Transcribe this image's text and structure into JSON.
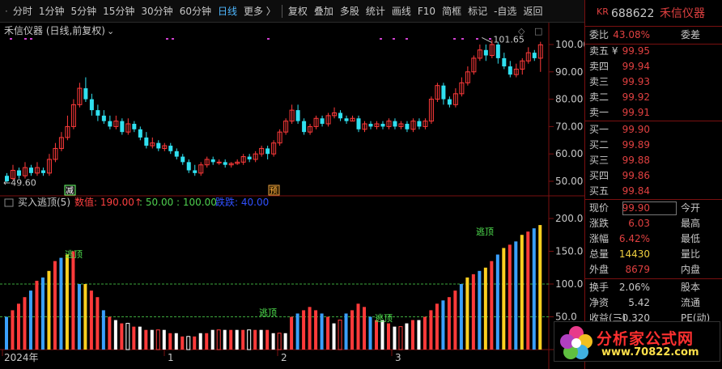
{
  "toolbar": {
    "items": [
      {
        "label": "分时",
        "active": false
      },
      {
        "label": "1分钟",
        "active": false
      },
      {
        "label": "5分钟",
        "active": false
      },
      {
        "label": "15分钟",
        "active": false
      },
      {
        "label": "30分钟",
        "active": false
      },
      {
        "label": "60分钟",
        "active": false
      },
      {
        "label": "日线",
        "active": true
      },
      {
        "label": "更多 〉",
        "active": false
      }
    ],
    "right_items": [
      "复权",
      "叠加",
      "多股",
      "统计",
      "画线",
      "F10",
      "简框",
      "标记",
      "-自选",
      "返回"
    ]
  },
  "chart": {
    "title": "禾信仪器 (日线,前复权)",
    "high_marker": "101.65",
    "low_marker": "49.60",
    "price_ticks": [
      "100.00",
      "90.00",
      "80.00",
      "70.00",
      "60.00",
      "50.00"
    ],
    "markers": [
      "减",
      "预"
    ],
    "colors": {
      "up": "#ff3a3a",
      "down": "#30e0f0",
      "grid": "#7a1010",
      "dotted": "#3da83d",
      "purple": "#d040d0"
    }
  },
  "indicator": {
    "title": "买入逃顶(5)",
    "value_label": "数值: 190.00↑",
    "params": ": 50.00 : 100.00",
    "diezhi_label": "跌跌: 40.00",
    "ticks": [
      "200.0",
      "150.0",
      "100.0",
      "50.0"
    ],
    "escape_label": "逃顶",
    "levels": [
      50,
      100
    ]
  },
  "xaxis": {
    "labels": [
      "2024年",
      "1",
      "2",
      "3"
    ]
  },
  "quote": {
    "market": "KR",
    "code": "688622",
    "name": "禾信仪器",
    "weibi_label": "委比",
    "weibi_value": "43.08%",
    "weicha_label": "委差",
    "sell": [
      {
        "label": "卖五",
        "price": "99.95",
        "extra": "¥"
      },
      {
        "label": "卖四",
        "price": "99.94",
        "extra": ""
      },
      {
        "label": "卖三",
        "price": "99.93",
        "extra": ""
      },
      {
        "label": "卖二",
        "price": "99.92",
        "extra": ""
      },
      {
        "label": "卖一",
        "price": "99.91",
        "extra": ""
      }
    ],
    "buy": [
      {
        "label": "买一",
        "price": "99.90"
      },
      {
        "label": "买二",
        "price": "99.89"
      },
      {
        "label": "买三",
        "price": "99.88"
      },
      {
        "label": "买四",
        "price": "99.86"
      },
      {
        "label": "买五",
        "price": "99.84"
      }
    ],
    "stats": [
      {
        "l1": "现价",
        "v1": "99.90",
        "c1": "#e04040",
        "l2": "今开"
      },
      {
        "l1": "涨跌",
        "v1": "6.03",
        "c1": "#e04040",
        "l2": "最高"
      },
      {
        "l1": "涨幅",
        "v1": "6.42%",
        "c1": "#e04040",
        "l2": "最低"
      },
      {
        "l1": "总量",
        "v1": "14430",
        "c1": "#f0d040",
        "l2": "量比"
      },
      {
        "l1": "外盘",
        "v1": "8679",
        "c1": "#e04040",
        "l2": "内盘"
      }
    ],
    "stats2": [
      {
        "l1": "换手",
        "v1": "2.06%",
        "l2": "股本"
      },
      {
        "l1": "净资",
        "v1": "5.42",
        "l2": "流通"
      },
      {
        "l1": "收益(三)",
        "v1": "-0.320",
        "l2": "PE(动)"
      }
    ]
  },
  "logo": {
    "line1": "分析家公式网",
    "line2": "www.70822.com"
  }
}
